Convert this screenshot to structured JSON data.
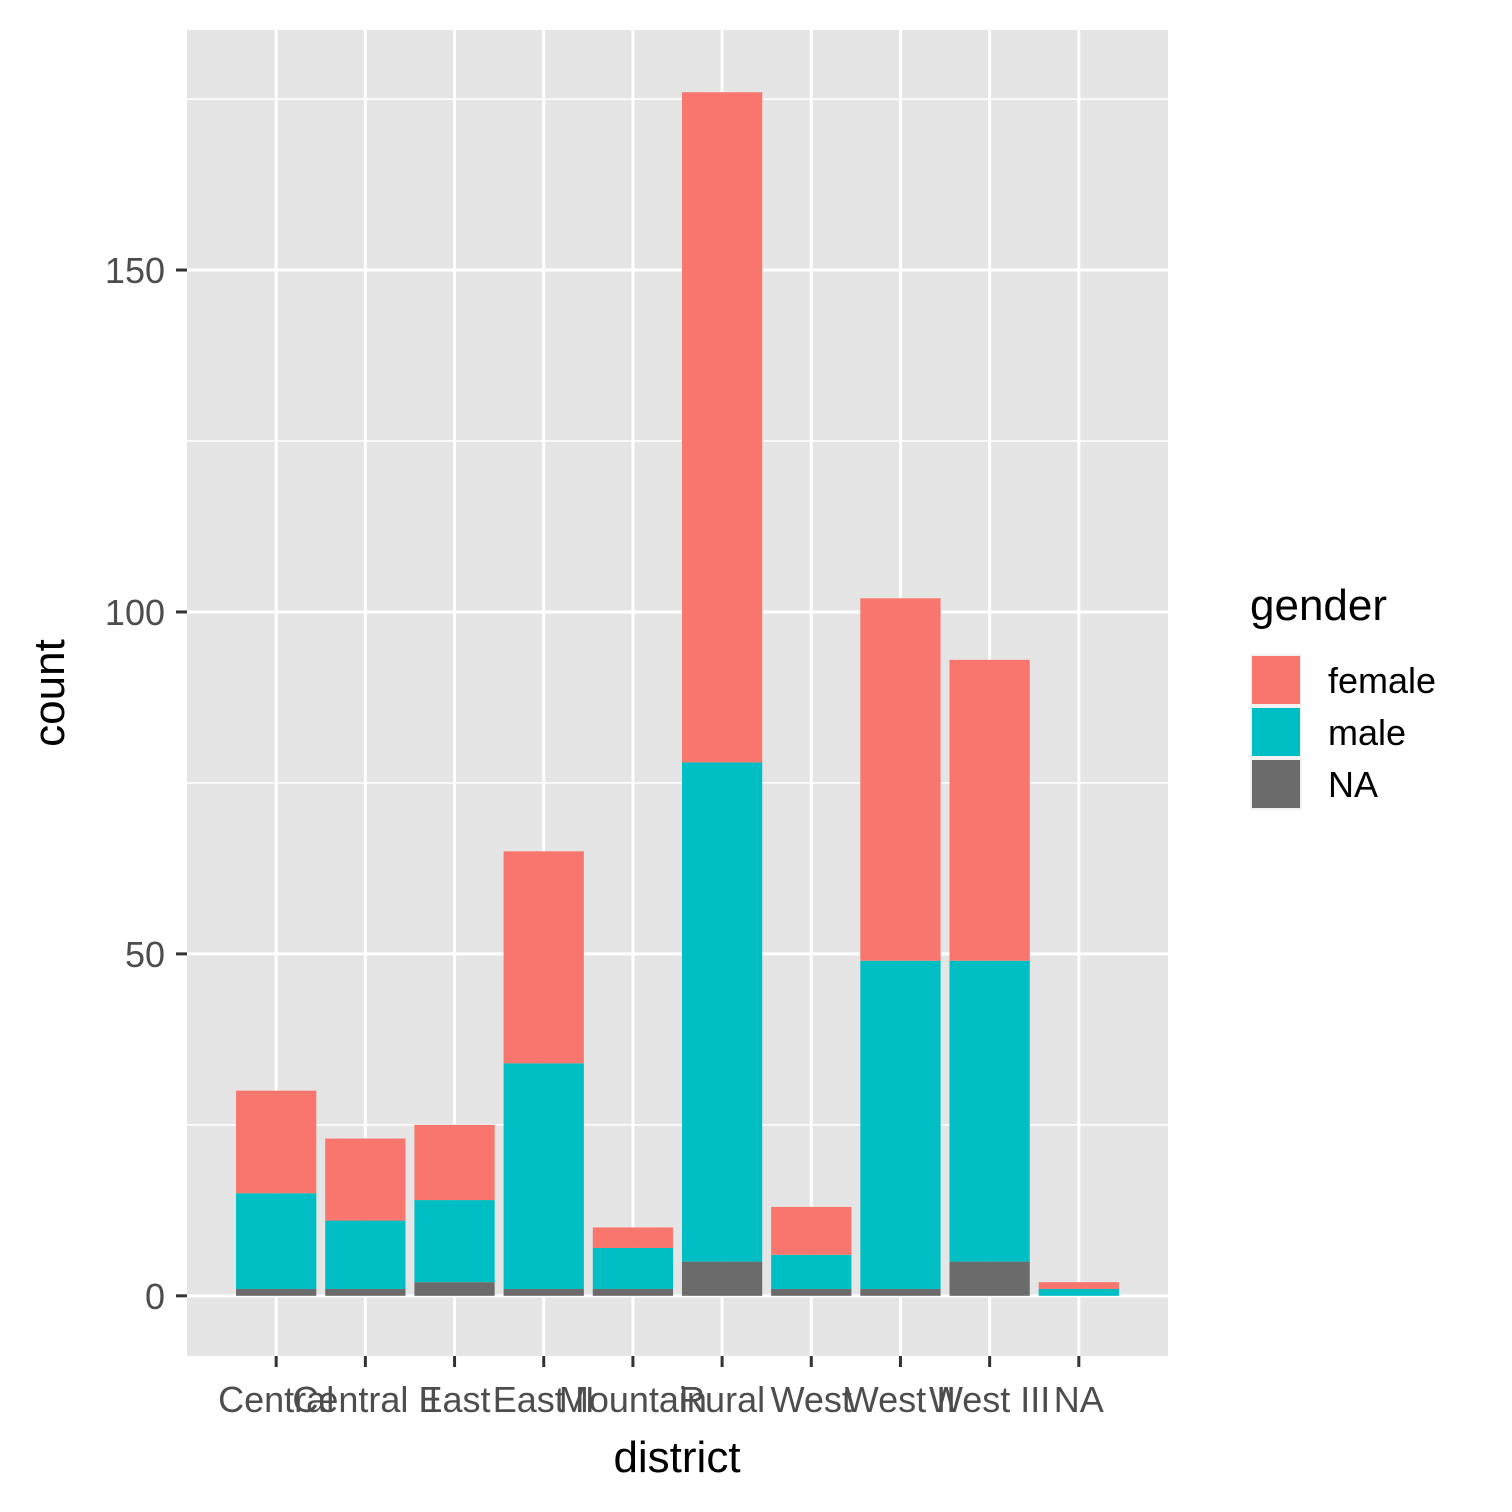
{
  "chart_data": {
    "type": "bar",
    "stacked": true,
    "categories": [
      "Central",
      "Central II",
      "East",
      "East II",
      "Mountain",
      "Rural",
      "West",
      "West II",
      "West III",
      "NA"
    ],
    "series": [
      {
        "name": "female",
        "values": [
          15,
          12,
          11,
          31,
          3,
          98,
          7,
          53,
          44,
          1
        ]
      },
      {
        "name": "male",
        "values": [
          14,
          10,
          12,
          33,
          6,
          73,
          5,
          48,
          44,
          1
        ]
      },
      {
        "name": "NA",
        "values": [
          1,
          1,
          2,
          1,
          1,
          5,
          1,
          1,
          5,
          0
        ]
      }
    ],
    "xlabel": "district",
    "ylabel": "count",
    "ylim": [
      -8.8,
      185.1
    ],
    "yticks": [
      0,
      50,
      100,
      150
    ],
    "ytick_labels": [
      "0",
      "50",
      "100",
      "150"
    ],
    "grid": true,
    "legend": {
      "title": "gender",
      "position": "right",
      "entries": [
        "female",
        "male",
        "NA"
      ]
    },
    "colors": {
      "female": "#F8766D",
      "male": "#00BFC4",
      "NA": "#6B6B6B",
      "panel_background": "#E5E5E5",
      "grid": "#FFFFFF"
    }
  }
}
